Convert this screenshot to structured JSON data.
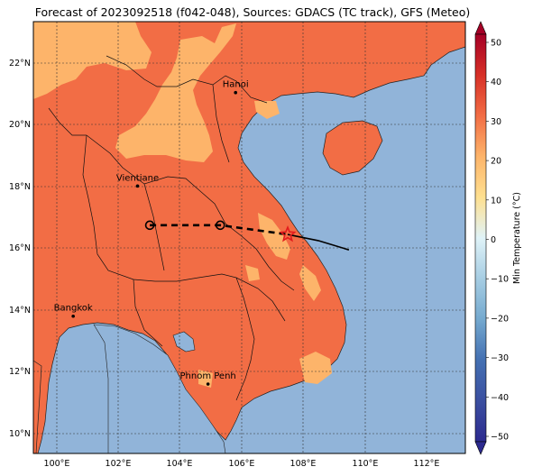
{
  "title": "Forecast of 2023092518 (f042-048), Sources: GDACS (TC track), GFS (Meteo)",
  "lat_ticks": [
    "22°N",
    "20°N",
    "18°N",
    "16°N",
    "14°N",
    "12°N",
    "10°N"
  ],
  "lon_ticks": [
    "100°E",
    "102°E",
    "104°E",
    "106°E",
    "108°E",
    "110°E",
    "112°E"
  ],
  "cities": [
    {
      "name": "Hanoi"
    },
    {
      "name": "Vientiane"
    },
    {
      "name": "Bangkok"
    },
    {
      "name": "Phnom Penh"
    }
  ],
  "colorbar": {
    "label": "Min Temperature (°C)",
    "ticks": [
      "50",
      "40",
      "30",
      "20",
      "10",
      "0",
      "−10",
      "−20",
      "−30",
      "−40",
      "−50"
    ]
  },
  "colors": {
    "sea": "#91b4d9",
    "land_warm": "#f26d45",
    "land_cool": "#fdb46a",
    "track": "#000000",
    "current_position": "#e31a1c"
  },
  "chart_data": {
    "type": "map",
    "variable": "Min Temperature",
    "unit": "°C",
    "extent": {
      "lon": [
        99.2,
        113.3
      ],
      "lat": [
        9.3,
        23.3
      ]
    },
    "colorbar_range": [
      -50,
      50
    ],
    "forecast_track": [
      {
        "lon": 103.0,
        "lat": 16.7
      },
      {
        "lon": 105.3,
        "lat": 16.7
      },
      {
        "lon": 107.5,
        "lat": 16.4
      }
    ],
    "past_track": [
      {
        "lon": 107.5,
        "lat": 16.4
      },
      {
        "lon": 108.5,
        "lat": 16.2
      },
      {
        "lon": 109.5,
        "lat": 15.9
      }
    ],
    "current_position": {
      "lon": 107.5,
      "lat": 16.4
    },
    "cities": [
      {
        "name": "Hanoi",
        "lon": 105.8,
        "lat": 21.0
      },
      {
        "name": "Vientiane",
        "lon": 102.6,
        "lat": 17.97
      },
      {
        "name": "Bangkok",
        "lon": 100.5,
        "lat": 13.75
      },
      {
        "name": "Phnom Penh",
        "lon": 104.9,
        "lat": 11.55
      }
    ]
  }
}
